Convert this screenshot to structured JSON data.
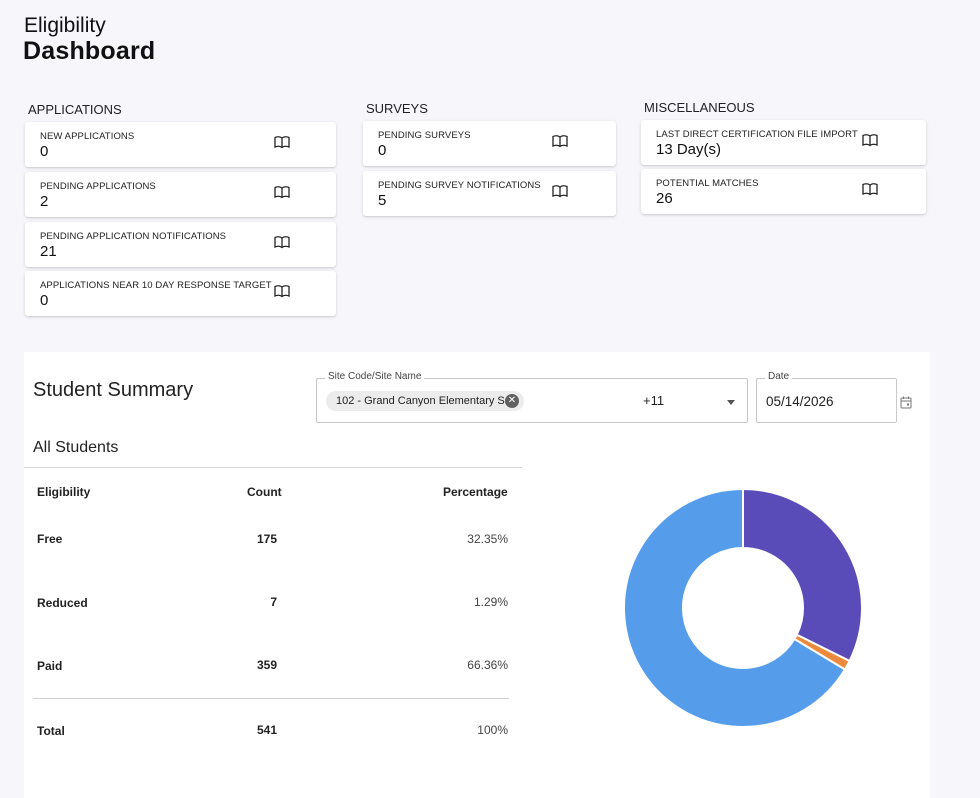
{
  "header": {
    "subtitle": "Eligibility",
    "title": "Dashboard"
  },
  "sections": {
    "applications": {
      "title": "APPLICATIONS",
      "cards": [
        {
          "label": "NEW APPLICATIONS",
          "value": "0",
          "icon": "book-icon"
        },
        {
          "label": "PENDING APPLICATIONS",
          "value": "2",
          "icon": "book-icon"
        },
        {
          "label": "PENDING APPLICATION NOTIFICATIONS",
          "value": "21",
          "icon": "book-icon"
        },
        {
          "label": "APPLICATIONS NEAR 10 DAY RESPONSE TARGET",
          "value": "0",
          "icon": "book-icon"
        }
      ]
    },
    "surveys": {
      "title": "SURVEYS",
      "cards": [
        {
          "label": "PENDING SURVEYS",
          "value": "0",
          "icon": "book-icon"
        },
        {
          "label": "PENDING SURVEY NOTIFICATIONS",
          "value": "5",
          "icon": "book-icon"
        }
      ]
    },
    "misc": {
      "title": "MISCELLANEOUS",
      "cards": [
        {
          "label": "LAST DIRECT CERTIFICATION FILE IMPORT",
          "value": "13 Day(s)",
          "icon": "book-icon"
        },
        {
          "label": "POTENTIAL MATCHES",
          "value": "26",
          "icon": "book-icon"
        }
      ]
    }
  },
  "summary": {
    "title": "Student Summary",
    "site_filter": {
      "label": "Site Code/Site Name",
      "chip": "102 - Grand Canyon Elementary S...",
      "more": "+11"
    },
    "date_filter": {
      "label": "Date",
      "value": "05/14/2026"
    },
    "table": {
      "title": "All Students",
      "headers": {
        "eligibility": "Eligibility",
        "count": "Count",
        "percentage": "Percentage"
      },
      "rows": [
        {
          "name": "Free",
          "count": "175",
          "pct": "32.35%"
        },
        {
          "name": "Reduced",
          "count": "7",
          "pct": "1.29%"
        },
        {
          "name": "Paid",
          "count": "359",
          "pct": "66.36%"
        }
      ],
      "total": {
        "name": "Total",
        "count": "541",
        "pct": "100%"
      }
    }
  },
  "chart_data": {
    "type": "pie",
    "style": "donut",
    "categories": [
      "Free",
      "Reduced",
      "Paid"
    ],
    "values": [
      175,
      7,
      359
    ],
    "colors": [
      "#5a4cb8",
      "#ec8a3c",
      "#559cea"
    ]
  }
}
